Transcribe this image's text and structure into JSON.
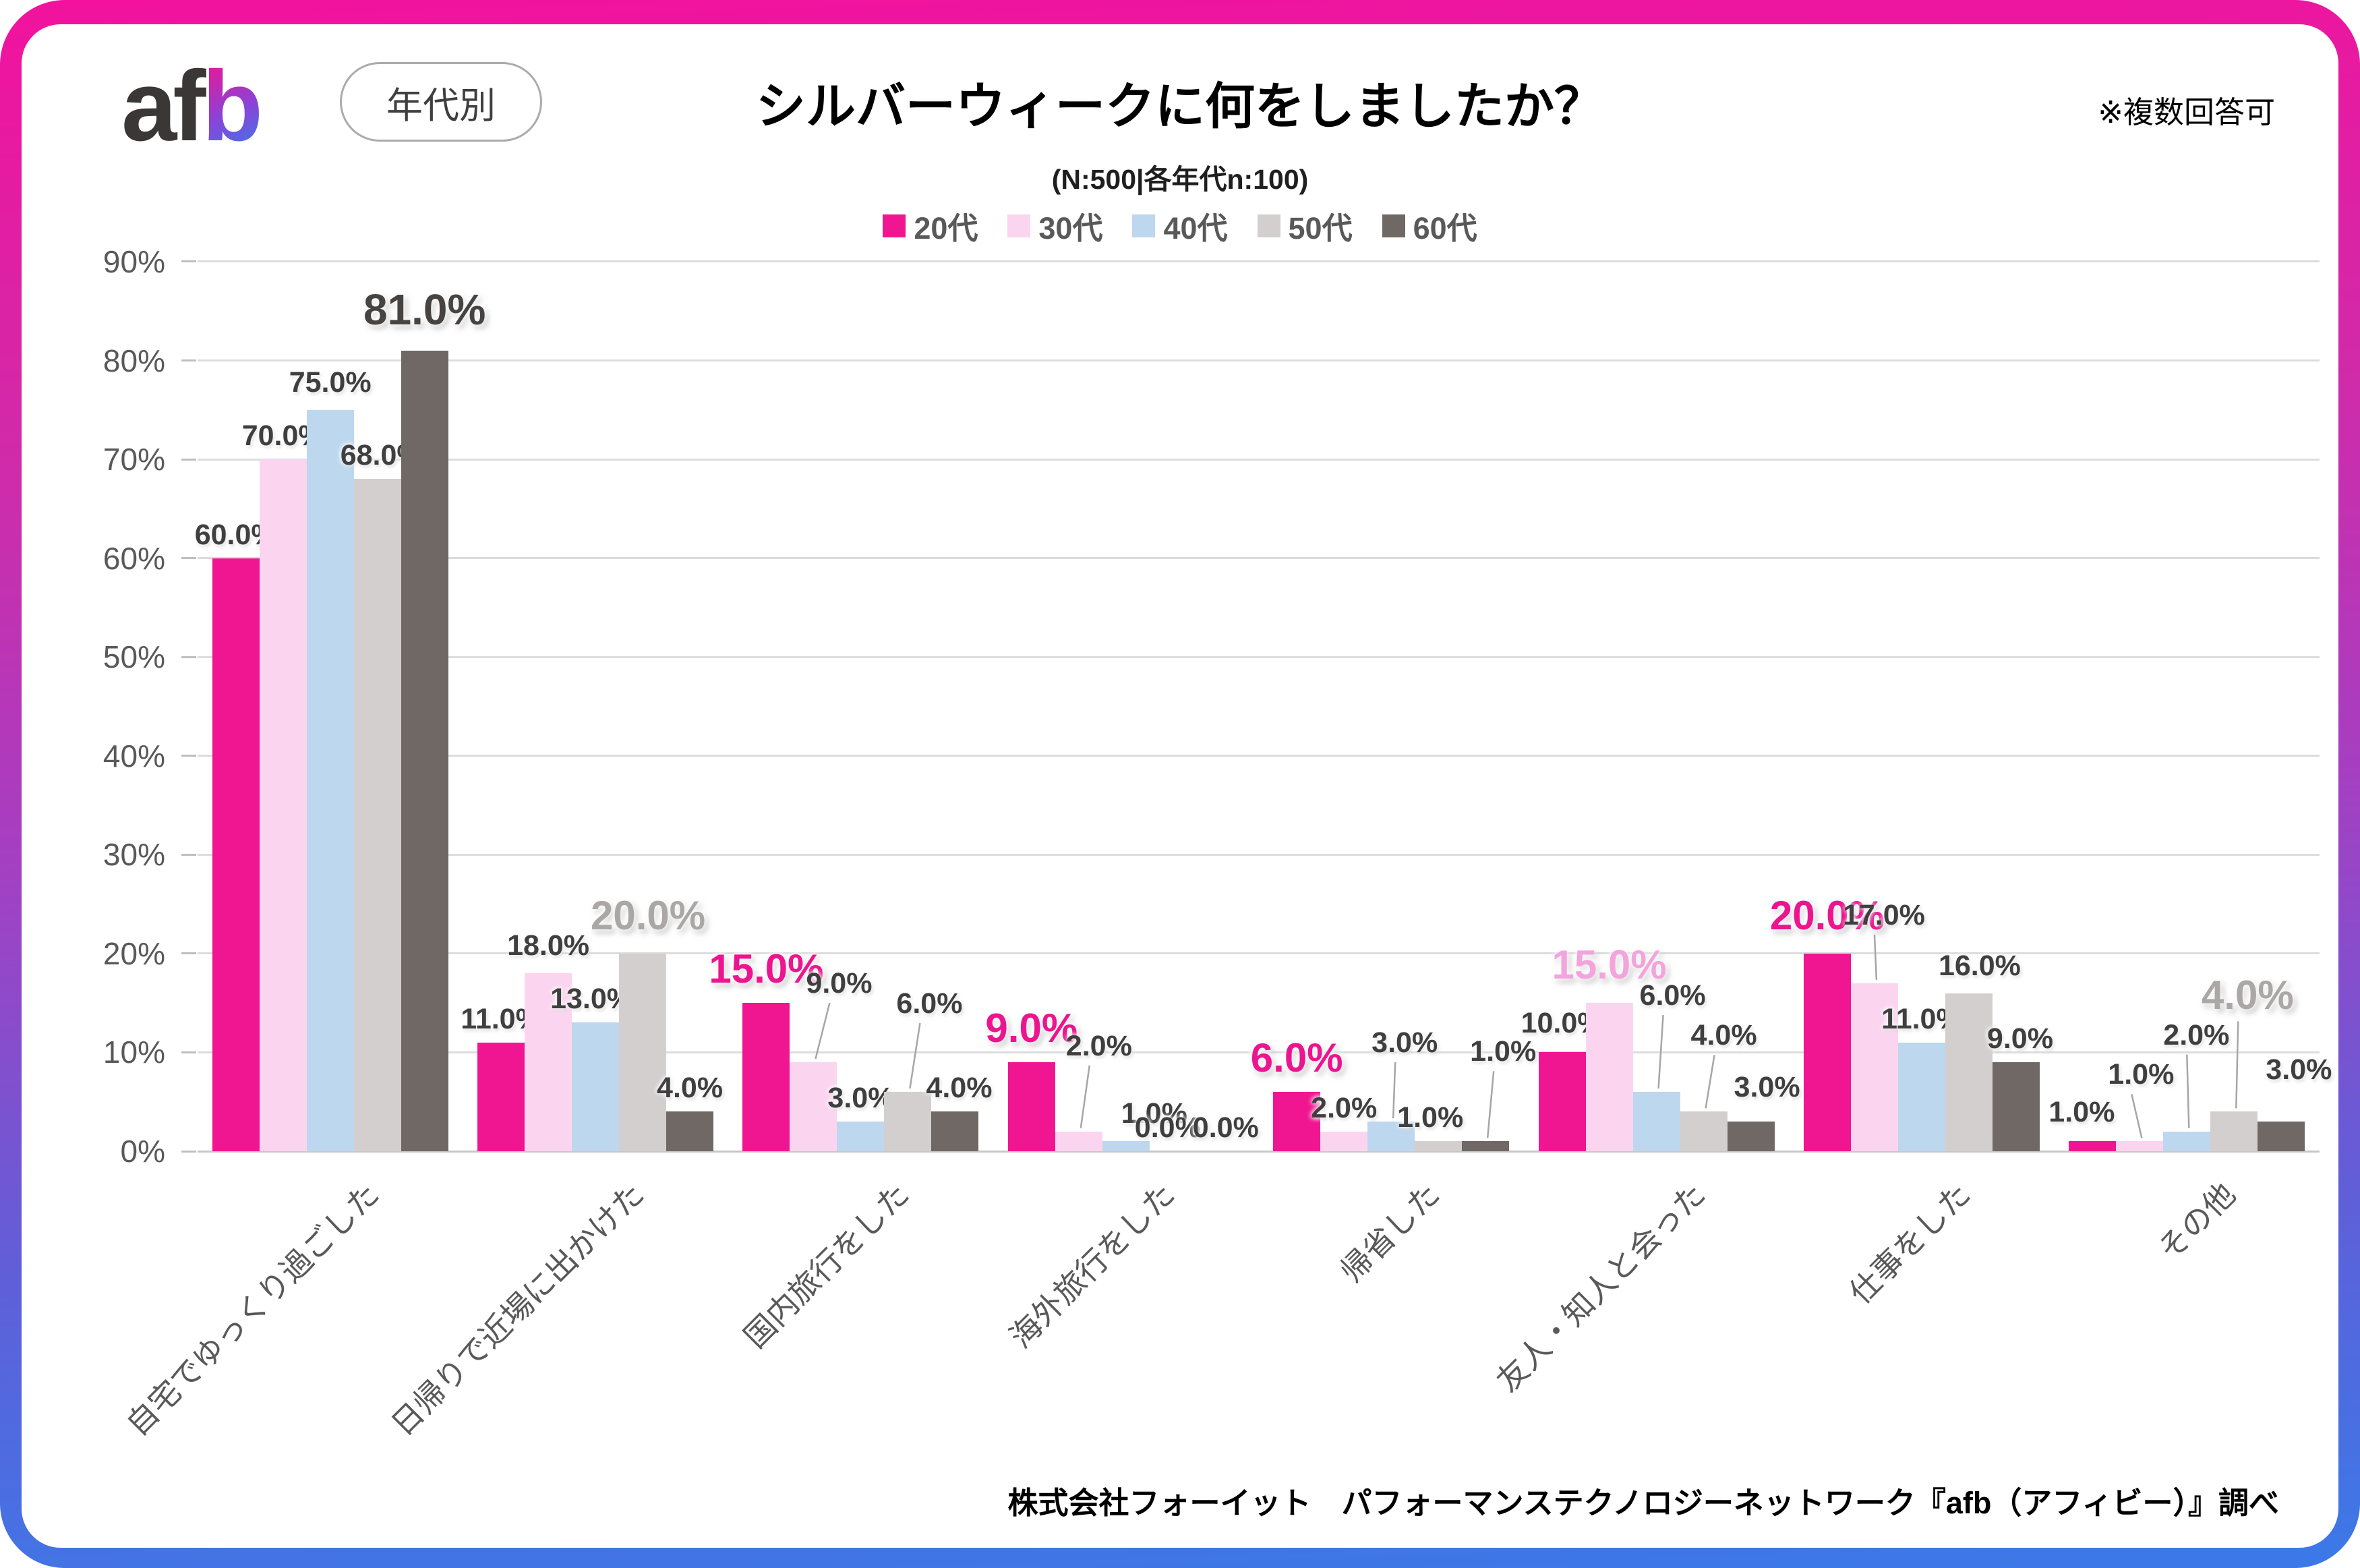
{
  "header": {
    "logo_af": "af",
    "logo_b": "b",
    "badge": "年代別",
    "title": "シルバーウィークに何をしましたか？",
    "subtitle": "(N:500|各年代n:100)",
    "note": "※複数回答可"
  },
  "footer": {
    "source": "株式会社フォーイット　パフォーマンステクノロジーネットワーク『afb（アフィビー）』調べ"
  },
  "chart_data": {
    "type": "bar",
    "title": "シルバーウィークに何をしましたか？",
    "subtitle": "(N:500|各年代n:100)",
    "categories": [
      "自宅でゆっくり過ごした",
      "日帰りで近場に出かけた",
      "国内旅行をした",
      "海外旅行をした",
      "帰省した",
      "友人・知人と会った",
      "仕事をした",
      "その他"
    ],
    "series": [
      {
        "name": "20代",
        "color": "#F01691",
        "values": [
          60,
          11,
          15,
          9,
          6,
          10,
          20,
          1
        ]
      },
      {
        "name": "30代",
        "color": "#FBD5F0",
        "values": [
          70,
          18,
          9,
          2,
          2,
          15,
          17,
          1
        ]
      },
      {
        "name": "40代",
        "color": "#BDD7EE",
        "values": [
          75,
          13,
          3,
          1,
          3,
          6,
          11,
          2
        ]
      },
      {
        "name": "50代",
        "color": "#D3CFCF",
        "values": [
          68,
          20,
          6,
          0,
          1,
          4,
          16,
          4
        ]
      },
      {
        "name": "60代",
        "color": "#6F6865",
        "values": [
          81,
          4,
          4,
          0,
          1,
          3,
          9,
          3
        ]
      }
    ],
    "ylabel": "",
    "xlabel": "",
    "ylim": [
      0,
      90
    ],
    "ytick_labels": [
      "0%",
      "10%",
      "20%",
      "30%",
      "40%",
      "50%",
      "60%",
      "70%",
      "80%",
      "90%"
    ],
    "grid": true,
    "legend_position": "top",
    "value_label_format": "#.0%",
    "highlights": [
      {
        "category": 0,
        "series": 4,
        "label_color": "#474340"
      },
      {
        "category": 1,
        "series": 3,
        "label_color": "#ABA7A7"
      },
      {
        "category": 2,
        "series": 0,
        "label_color": "#EC148F"
      },
      {
        "category": 3,
        "series": 0,
        "label_color": "#EC148F"
      },
      {
        "category": 4,
        "series": 0,
        "label_color": "#EC148F"
      },
      {
        "category": 5,
        "series": 1,
        "label_color": "#F3A4DC"
      },
      {
        "category": 6,
        "series": 0,
        "label_color": "#EC148F"
      },
      {
        "category": 7,
        "series": 3,
        "label_color": "#ABA7A7"
      }
    ],
    "label_hints": [
      [
        [
          0,
          0,
          0
        ],
        [
          0,
          0,
          0
        ],
        [
          0,
          6,
          0
        ],
        [
          6,
          0,
          0
        ],
        [
          0,
          14,
          0
        ]
      ],
      [
        [
          0,
          0,
          0
        ],
        [
          0,
          6,
          0
        ],
        [
          -6,
          0,
          0
        ],
        [
          8,
          12,
          0
        ],
        [
          0,
          0,
          0
        ]
      ],
      [
        [
          0,
          6,
          0
        ],
        [
          38,
          82,
          1
        ],
        [
          0,
          0,
          0
        ],
        [
          32,
          96,
          1
        ],
        [
          6,
          0,
          0
        ]
      ],
      [
        [
          0,
          6,
          0
        ],
        [
          30,
          92,
          1
        ],
        [
          42,
          6,
          0
        ],
        [
          -8,
          0,
          0
        ],
        [
          8,
          0,
          0
        ]
      ],
      [
        [
          0,
          6,
          0
        ],
        [
          0,
          0,
          0
        ],
        [
          20,
          82,
          1
        ],
        [
          -12,
          0,
          0
        ],
        [
          26,
          98,
          1
        ]
      ],
      [
        [
          0,
          8,
          0
        ],
        [
          0,
          12,
          0
        ],
        [
          24,
          108,
          1
        ],
        [
          30,
          78,
          1
        ],
        [
          24,
          16,
          0
        ]
      ],
      [
        [
          0,
          12,
          0
        ],
        [
          14,
          66,
          1
        ],
        [
          0,
          0,
          0
        ],
        [
          16,
          6,
          0
        ],
        [
          6,
          0,
          0
        ]
      ],
      [
        [
          -16,
          8,
          0
        ],
        [
          2,
          64,
          1
        ],
        [
          14,
          108,
          1
        ],
        [
          20,
          128,
          1
        ],
        [
          26,
          42,
          0
        ]
      ]
    ]
  }
}
